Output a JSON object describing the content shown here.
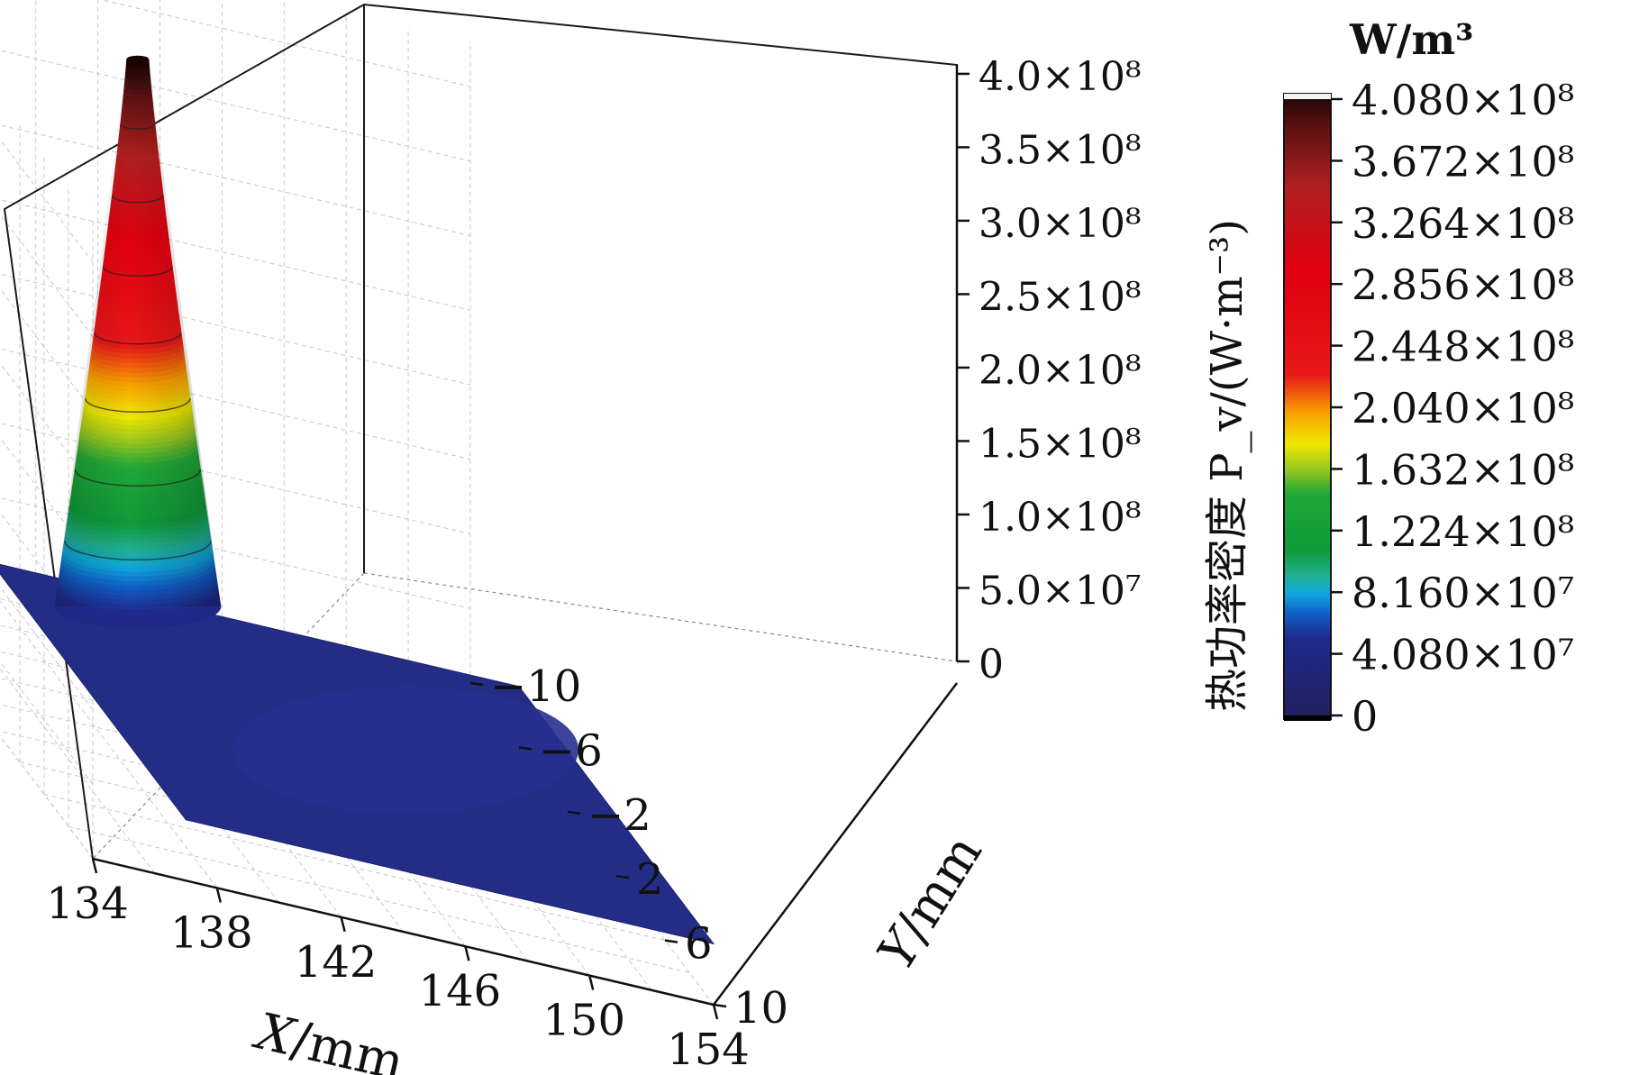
{
  "chart_data": {
    "type": "surface3d",
    "title": "",
    "xlabel": "X/mm",
    "ylabel": "Y/mm",
    "zlabel": "",
    "x_ticks": [
      "134",
      "138",
      "142",
      "146",
      "150",
      "154"
    ],
    "y_ticks": [
      "-10",
      "-6",
      "-2",
      "2",
      "6",
      "10"
    ],
    "z_ticks": [
      "0",
      "5.0×10⁷",
      "1.0×10⁸",
      "1.5×10⁸",
      "2.0×10⁸",
      "2.5×10⁸",
      "3.0×10⁸",
      "3.5×10⁸",
      "4.0×10⁸"
    ],
    "xlim": [
      134,
      154
    ],
    "ylim": [
      -10,
      10
    ],
    "zlim": [
      0,
      400000000
    ],
    "surface": {
      "description_free": true,
      "peak_center_x": 142.5,
      "peak_center_y": -8,
      "peak_value": 408000000,
      "base_value": 40800000
    },
    "colorbar": {
      "unit": "W/m³",
      "label": "热功率密度 P_v/(W·m⁻³)",
      "ticks": [
        "4.080×10⁸",
        "3.672×10⁸",
        "3.264×10⁸",
        "2.856×10⁸",
        "2.448×10⁸",
        "2.040×10⁸",
        "1.632×10⁸",
        "1.224×10⁸",
        "8.160×10⁷",
        "4.080×10⁷",
        "0"
      ],
      "stops": [
        {
          "frac": 0.0,
          "color": "#231f5e"
        },
        {
          "frac": 0.13,
          "color": "#1f2a8c"
        },
        {
          "frac": 0.17,
          "color": "#1060c8"
        },
        {
          "frac": 0.2,
          "color": "#10a8e0"
        },
        {
          "frac": 0.23,
          "color": "#20b090"
        },
        {
          "frac": 0.27,
          "color": "#109a3a"
        },
        {
          "frac": 0.36,
          "color": "#20a838"
        },
        {
          "frac": 0.4,
          "color": "#9ac820"
        },
        {
          "frac": 0.44,
          "color": "#f0e800"
        },
        {
          "frac": 0.49,
          "color": "#f8a000"
        },
        {
          "frac": 0.55,
          "color": "#e81818"
        },
        {
          "frac": 0.72,
          "color": "#e00010"
        },
        {
          "frac": 0.85,
          "color": "#b02020"
        },
        {
          "frac": 0.95,
          "color": "#5a1010"
        },
        {
          "frac": 1.0,
          "color": "#1a0505"
        }
      ]
    }
  }
}
